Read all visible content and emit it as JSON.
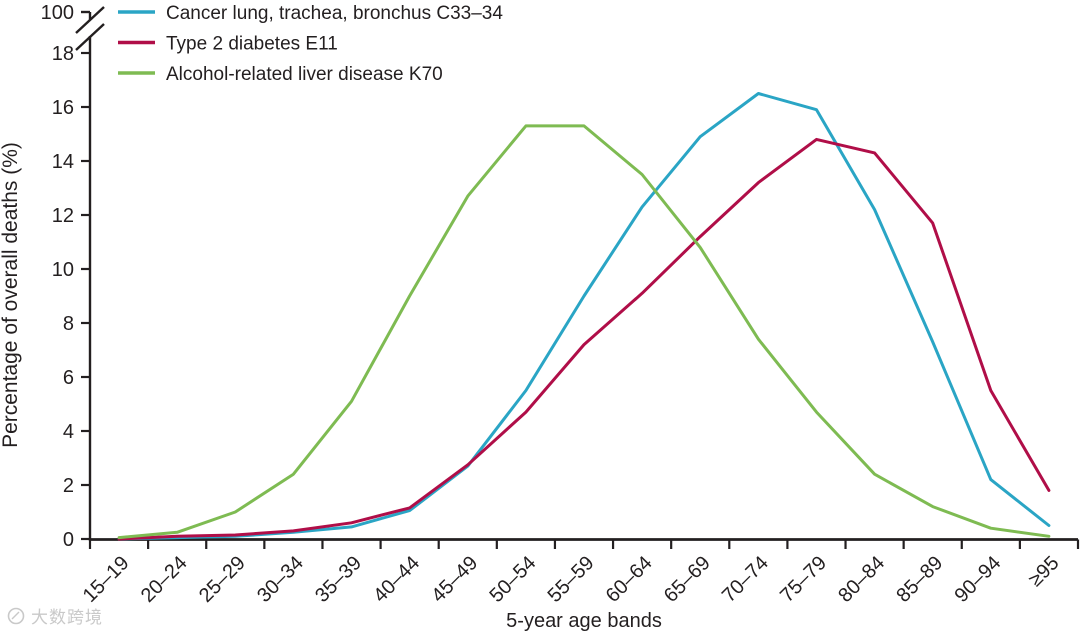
{
  "watermark": {
    "text": "大数跨境"
  },
  "chart_data": {
    "type": "line",
    "title": "",
    "xlabel": "5-year age bands",
    "ylabel": "Percentage of overall deaths (%)",
    "categories": [
      "15–19",
      "20–24",
      "25–29",
      "30–34",
      "35–39",
      "40–44",
      "45–49",
      "50–54",
      "55–59",
      "60–64",
      "65–69",
      "70–74",
      "75–79",
      "80–84",
      "85–89",
      "90–94",
      "≥95"
    ],
    "series": [
      {
        "name": "Cancer lung, trachea, bronchus C33–34",
        "color": "#2AA5C5",
        "values": [
          0.0,
          0.05,
          0.1,
          0.25,
          0.45,
          1.05,
          2.7,
          5.5,
          9.0,
          12.3,
          14.9,
          16.5,
          15.9,
          12.2,
          7.3,
          2.2,
          0.5
        ]
      },
      {
        "name": "Type 2 diabetes E11",
        "color": "#B00E48",
        "values": [
          0.0,
          0.1,
          0.15,
          0.3,
          0.6,
          1.15,
          2.75,
          4.7,
          7.2,
          9.1,
          11.2,
          13.2,
          14.8,
          14.3,
          11.7,
          5.5,
          1.8
        ]
      },
      {
        "name": "Alcohol-related liver disease K70",
        "color": "#7EBB52",
        "values": [
          0.05,
          0.25,
          1.0,
          2.4,
          5.1,
          9.0,
          12.7,
          15.3,
          15.3,
          13.5,
          10.8,
          7.4,
          4.7,
          2.4,
          1.2,
          0.4,
          0.1
        ]
      }
    ],
    "y_ticks": [
      0,
      2,
      4,
      6,
      8,
      10,
      12,
      14,
      16,
      18
    ],
    "y_axis_break_label": "100",
    "ylim": [
      0,
      18
    ],
    "legend_position": "top-left",
    "grid": false,
    "axis_color": "#231F20"
  }
}
